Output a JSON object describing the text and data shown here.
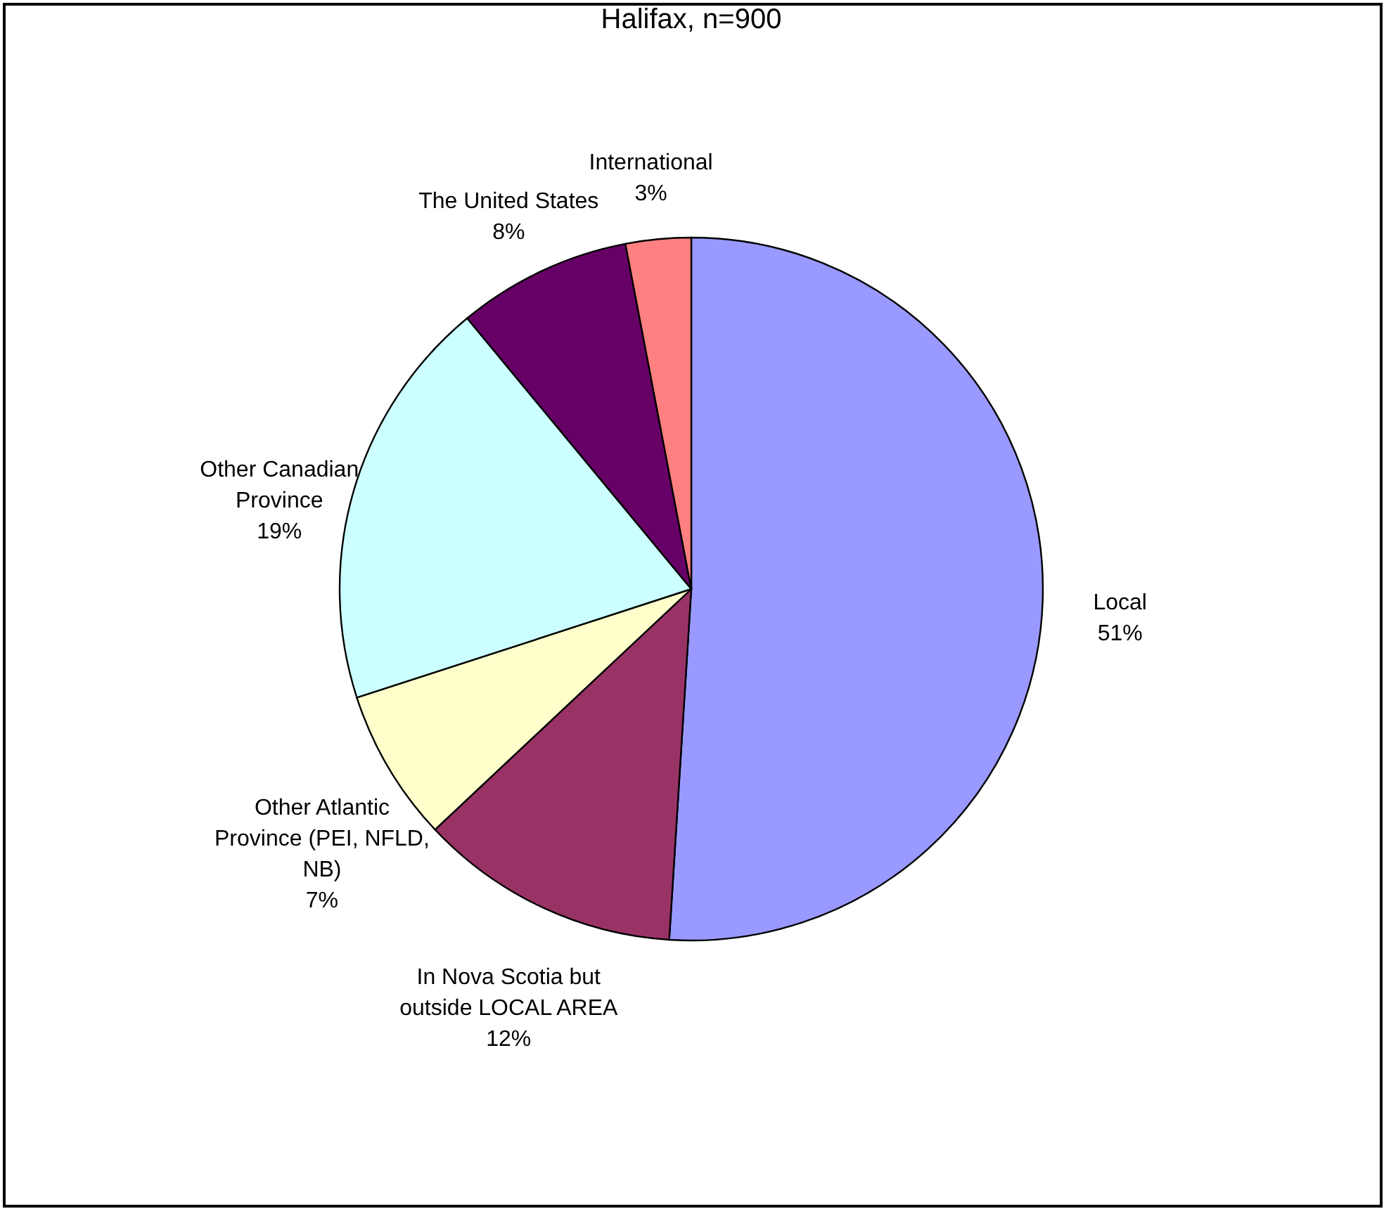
{
  "chart_data": {
    "type": "pie",
    "title": "Halifax, n=900",
    "categories": [
      "Local",
      "In Nova Scotia but outside LOCAL AREA",
      "Other Atlantic Province (PEI, NFLD, NB)",
      "Other Canadian Province",
      "The United States",
      "International"
    ],
    "values": [
      51,
      12,
      7,
      19,
      8,
      3
    ],
    "value_labels": [
      "51%",
      "12%",
      "7%",
      "19%",
      "8%",
      "3%"
    ],
    "colors": [
      "#9999ff",
      "#993366",
      "#ffffcc",
      "#ccffff",
      "#660066",
      "#ff8080"
    ],
    "legend": false
  }
}
